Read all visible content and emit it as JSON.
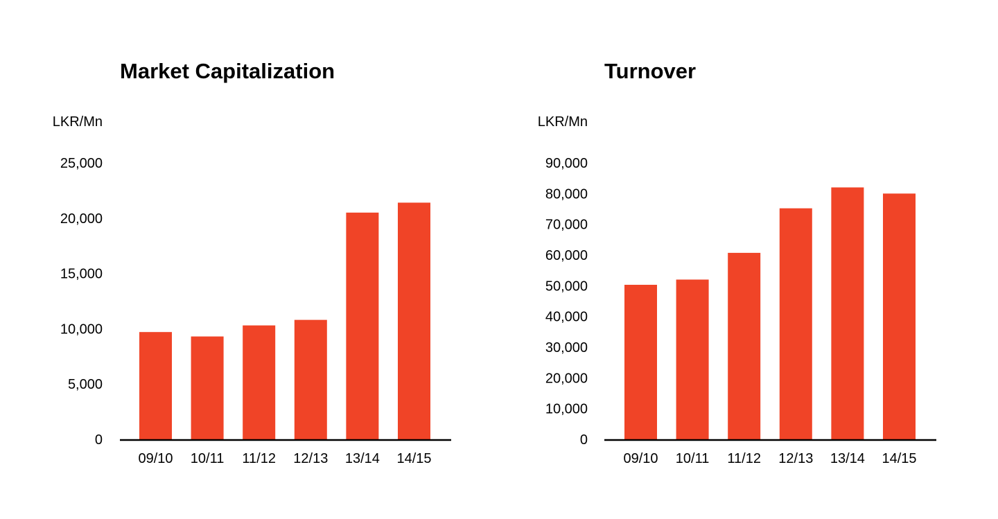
{
  "chart_data": [
    {
      "type": "bar",
      "title": "Market Capitalization",
      "ylabel": "LKR/Mn",
      "xlabel": "",
      "categories": [
        "09/10",
        "10/11",
        "11/12",
        "12/13",
        "13/14",
        "14/15"
      ],
      "values": [
        9700,
        9300,
        10300,
        10800,
        20500,
        21400
      ],
      "ylim": [
        0,
        25000
      ],
      "yticks": [
        "0",
        "5,000",
        "10,000",
        "15,000",
        "20,000",
        "25,000"
      ],
      "grid": false,
      "legend": "none",
      "color": "#f04427"
    },
    {
      "type": "bar",
      "title": "Turnover",
      "ylabel": "LKR/Mn",
      "xlabel": "",
      "categories": [
        "09/10",
        "10/11",
        "11/12",
        "12/13",
        "13/14",
        "14/15"
      ],
      "values": [
        50300,
        52000,
        60700,
        75200,
        82000,
        80000
      ],
      "ylim": [
        0,
        90000
      ],
      "yticks": [
        "0",
        "10,000",
        "20,000",
        "30,000",
        "40,000",
        "50,000",
        "60,000",
        "70,000",
        "80,000",
        "90,000"
      ],
      "grid": false,
      "legend": "none",
      "color": "#f04427"
    }
  ]
}
